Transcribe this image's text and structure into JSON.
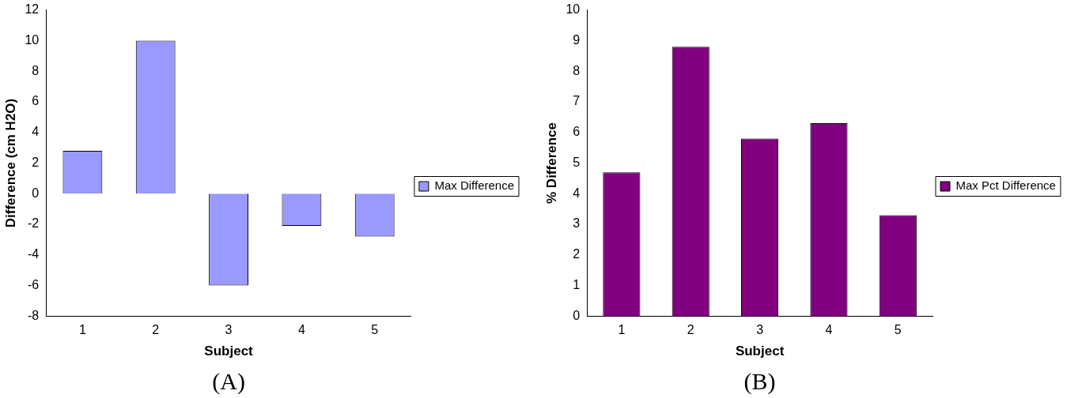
{
  "chart_data": [
    {
      "type": "bar",
      "xlabel": "Subject",
      "ylabel": "Difference (cm H2O)",
      "categories": [
        "1",
        "2",
        "3",
        "4",
        "5"
      ],
      "series": [
        {
          "name": "Max Difference",
          "color": "#9999ff",
          "values": [
            2.8,
            10.0,
            -6.0,
            -2.1,
            -2.8
          ]
        }
      ],
      "ylim": [
        -8,
        12
      ],
      "yticks": [
        -8,
        -6,
        -4,
        -2,
        0,
        2,
        4,
        6,
        8,
        10,
        12
      ],
      "grid": false,
      "legend": "right",
      "annotations": [
        "(A)"
      ]
    },
    {
      "type": "bar",
      "xlabel": "Subject",
      "ylabel": "% Difference",
      "categories": [
        "1",
        "2",
        "3",
        "4",
        "5"
      ],
      "series": [
        {
          "name": "Max Pct Difference",
          "color": "#800080",
          "values": [
            4.7,
            8.8,
            5.8,
            6.3,
            3.3
          ]
        }
      ],
      "ylim": [
        0,
        10
      ],
      "yticks": [
        0,
        1,
        2,
        3,
        4,
        5,
        6,
        7,
        8,
        9,
        10
      ],
      "grid": false,
      "legend": "right",
      "annotations": [
        "(B)"
      ]
    }
  ]
}
